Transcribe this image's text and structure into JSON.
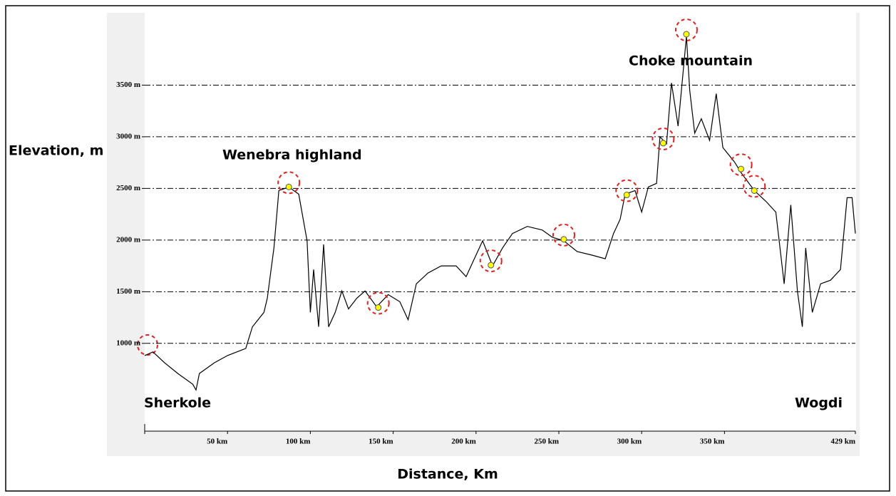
{
  "chart_data": {
    "type": "line",
    "ylabel": "Elevation, m",
    "xlabel": "Distance, Km",
    "annotations": [
      "Wenebra highland",
      "Choke mountain",
      "Sherkole",
      "Wogdi"
    ],
    "xlim": [
      0,
      429
    ],
    "ylim": [
      150,
      4200
    ],
    "xticks": [
      {
        "value": 50,
        "label": "50 km"
      },
      {
        "value": 100,
        "label": "100 km"
      },
      {
        "value": 150,
        "label": "150 km"
      },
      {
        "value": 200,
        "label": "200 km"
      },
      {
        "value": 250,
        "label": "250 km"
      },
      {
        "value": 300,
        "label": "300 km"
      },
      {
        "value": 350,
        "label": "350 km"
      },
      {
        "value": 429,
        "label": "429 km"
      }
    ],
    "yticks": [
      {
        "value": 1000,
        "label": "1000 m"
      },
      {
        "value": 1500,
        "label": "1500 m"
      },
      {
        "value": 2000,
        "label": "2000 m"
      },
      {
        "value": 2500,
        "label": "2500 m"
      },
      {
        "value": 3000,
        "label": "3000 m"
      },
      {
        "value": 3500,
        "label": "3500 m"
      }
    ],
    "grid": true,
    "color": "#000000",
    "x": [
      0,
      5,
      12,
      20,
      29,
      31,
      33,
      42,
      50,
      61,
      65,
      72,
      74,
      78,
      81,
      87,
      93,
      98,
      100,
      102,
      105,
      108,
      111,
      115,
      119,
      123,
      128,
      133,
      140,
      147,
      154,
      159,
      164,
      171,
      179,
      188,
      194,
      200,
      204,
      210,
      216,
      222,
      231,
      240,
      246,
      253,
      261,
      270,
      278,
      283,
      287,
      290,
      296,
      300,
      304,
      309,
      311,
      315,
      318,
      322,
      327,
      329,
      332,
      336,
      341,
      345,
      349,
      356,
      360,
      368,
      375,
      381,
      383,
      386,
      390,
      394,
      397,
      399,
      403,
      408,
      414,
      420,
      424,
      427,
      429
    ],
    "values": [
      882,
      917,
      812,
      708,
      604,
      549,
      708,
      812,
      882,
      951,
      1160,
      1300,
      1437,
      1924,
      2479,
      2514,
      2444,
      1993,
      1300,
      1715,
      1160,
      1958,
      1160,
      1300,
      1507,
      1333,
      1437,
      1507,
      1354,
      1472,
      1403,
      1229,
      1576,
      1681,
      1750,
      1750,
      1646,
      1854,
      1993,
      1750,
      1924,
      2063,
      2132,
      2097,
      2028,
      1993,
      1889,
      1854,
      1819,
      2063,
      2201,
      2444,
      2479,
      2271,
      2514,
      2549,
      3000,
      2931,
      3521,
      3104,
      3972,
      3451,
      3035,
      3174,
      2965,
      3417,
      2896,
      2757,
      2653,
      2479,
      2375,
      2271,
      1993,
      1576,
      2340,
      1507,
      1160,
      1924,
      1300,
      1576,
      1611,
      1715,
      2410,
      2410,
      2063
    ],
    "markers": {
      "color": "#ffff00",
      "x": [
        87,
        141,
        209,
        253,
        291,
        313,
        327,
        360,
        368
      ],
      "values": [
        2514,
        1347,
        1757,
        2007,
        2437,
        2938,
        3993,
        2688,
        2479
      ]
    }
  }
}
